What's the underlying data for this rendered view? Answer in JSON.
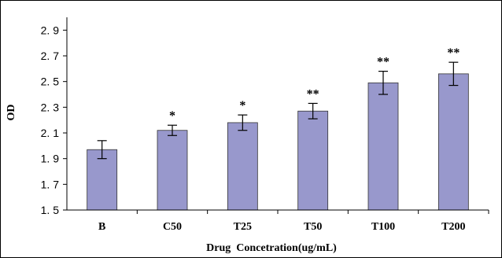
{
  "chart_data": {
    "type": "bar",
    "xlabel": "Drug  Concetration(ug/mL)",
    "ylabel": "OD",
    "ylim": [
      1.5,
      3.0
    ],
    "yticks": [
      1.5,
      1.7,
      1.9,
      2.1,
      2.3,
      2.5,
      2.7,
      2.9
    ],
    "ytick_labels": [
      "1. 5",
      "1. 7",
      "1. 9",
      "2. 1",
      "2. 3",
      "2. 5",
      "2. 7",
      "2. 9"
    ],
    "categories": [
      "B",
      "C50",
      "T25",
      "T50",
      "T100",
      "T200"
    ],
    "values": [
      1.97,
      2.12,
      2.18,
      2.27,
      2.49,
      2.56
    ],
    "errors": [
      0.07,
      0.04,
      0.06,
      0.06,
      0.09,
      0.09
    ],
    "significance": [
      "",
      "*",
      "*",
      "**",
      "**",
      "**"
    ],
    "grid": false,
    "legend": "none",
    "bar_color": "#9898CC"
  }
}
